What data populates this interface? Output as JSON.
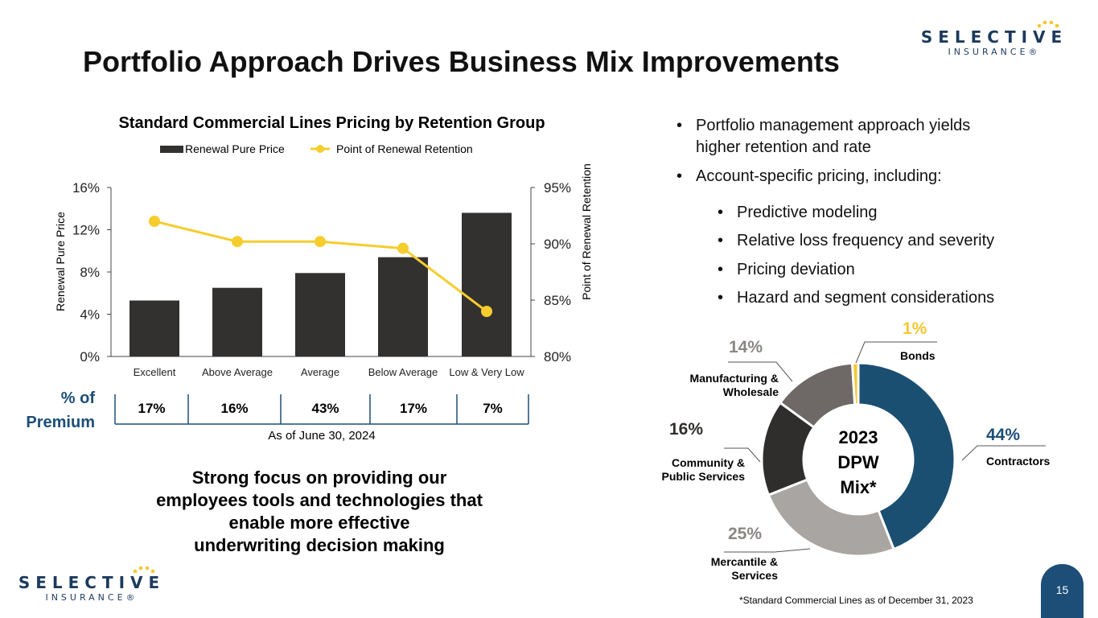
{
  "title": "Portfolio Approach Drives Business Mix Improvements",
  "logo": {
    "word": "SELECTIVE",
    "sub": "INSURANCE®"
  },
  "colors": {
    "bar": "#333130",
    "line": "#f5cd2d",
    "accent_blue": "#1c4e78",
    "donut_contractors": "#1b4f72",
    "donut_mercantile": "#a8a5a2",
    "donut_community": "#2f2e2d",
    "donut_manufacturing": "#6e6966",
    "donut_bonds": "#f2c830"
  },
  "chart_data": [
    {
      "type": "bar",
      "title": "Standard Commercial Lines Pricing by Retention Group",
      "categories": [
        "Excellent",
        "Above Average",
        "Average",
        "Below Average",
        "Low & Very Low"
      ],
      "series": [
        {
          "name": "Renewal Pure Price",
          "type": "bar",
          "axis": "left",
          "values": [
            5.3,
            6.5,
            7.9,
            9.4,
            13.6
          ]
        },
        {
          "name": "Point of Renewal Retention",
          "type": "line",
          "axis": "right",
          "values": [
            92.0,
            90.2,
            90.2,
            89.6,
            84.0
          ]
        }
      ],
      "ylabel": "Renewal Pure Price",
      "ylabel_right": "Point of Renewal Retention",
      "ylim": [
        0,
        16
      ],
      "ylim_right": [
        80,
        95
      ],
      "yticks": [
        "0%",
        "4%",
        "8%",
        "12%",
        "16%"
      ],
      "yticks_right": [
        "80%",
        "85%",
        "90%",
        "95%"
      ],
      "legend": "top"
    },
    {
      "type": "pie",
      "title": "2023 DPW Mix*",
      "slices": [
        {
          "label": "Contractors",
          "pct": "44%",
          "value": 44
        },
        {
          "label": "Mercantile & Services",
          "pct": "25%",
          "value": 25
        },
        {
          "label": "Community & Public Services",
          "pct": "16%",
          "value": 16
        },
        {
          "label": "Manufacturing & Wholesale",
          "pct": "14%",
          "value": 14
        },
        {
          "label": "Bonds",
          "pct": "1%",
          "value": 1
        }
      ]
    }
  ],
  "premium": {
    "label_line1": "% of",
    "label_line2": "Premium",
    "values": [
      "17%",
      "16%",
      "43%",
      "17%",
      "7%"
    ],
    "as_of": "As of June 30, 2024"
  },
  "bullets": [
    "Portfolio management approach yields",
    "higher retention and rate",
    "Account-specific pricing, including:"
  ],
  "sub_bullets": [
    "Predictive modeling",
    "Relative loss frequency and severity",
    "Pricing deviation",
    "Hazard and segment considerations"
  ],
  "focus_lines": [
    "Strong focus on providing our",
    "employees tools and technologies that",
    "enable more effective",
    "underwriting decision making"
  ],
  "donut_center": [
    "2023",
    "DPW",
    "Mix*"
  ],
  "donut_labels": {
    "contractors": {
      "pct": "44%",
      "name": "Contractors"
    },
    "mercantile": {
      "pct": "25%",
      "line1": "Mercantile &",
      "line2": "Services"
    },
    "community": {
      "pct": "16%",
      "line1": "Community &",
      "line2": "Public Services"
    },
    "manufacturing": {
      "pct": "14%",
      "line1": "Manufacturing &",
      "line2": "Wholesale"
    },
    "bonds": {
      "pct": "1%",
      "name": "Bonds"
    }
  },
  "footnote": "*Standard Commercial Lines as of December 31, 2023",
  "page_number": "15"
}
